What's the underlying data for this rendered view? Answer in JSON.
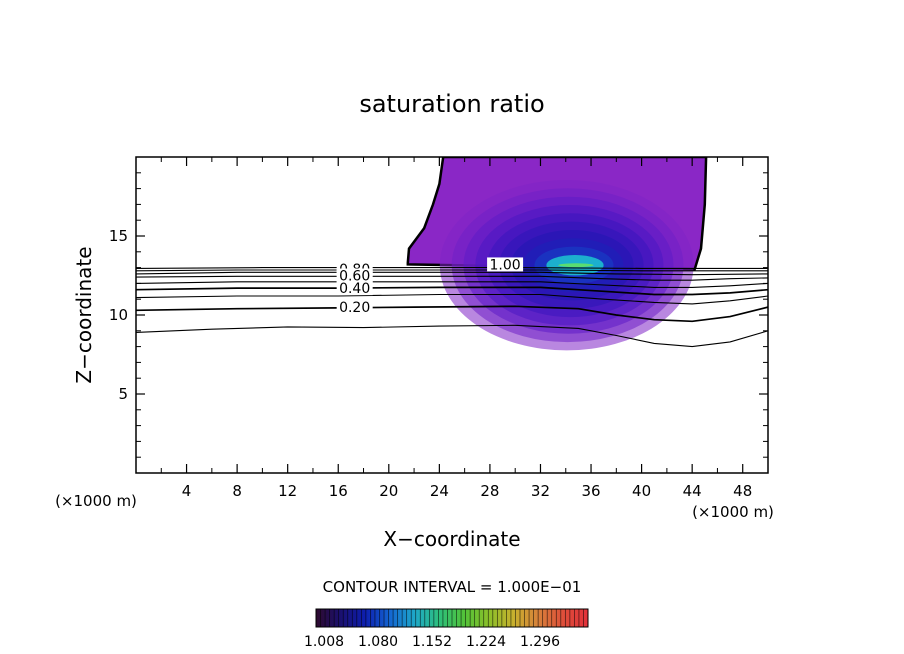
{
  "chart_data": {
    "type": "contour",
    "title": "saturation ratio",
    "xlabel": "X−coordinate",
    "ylabel": "Z−coordinate",
    "x_unit_left": "(×1000 m)",
    "x_unit_right": "(×1000 m)",
    "xlim": [
      0,
      50
    ],
    "ylim": [
      0,
      20
    ],
    "x_ticks": [
      4,
      8,
      12,
      16,
      20,
      24,
      28,
      32,
      36,
      40,
      44,
      48
    ],
    "y_ticks": [
      5,
      10,
      15
    ],
    "x_tick_labels": [
      "4",
      "8",
      "12",
      "16",
      "20",
      "24",
      "28",
      "32",
      "36",
      "40",
      "44",
      "48"
    ],
    "y_tick_labels": [
      "5",
      "10",
      "15"
    ],
    "contour_interval_text": "CONTOUR INTERVAL = 1.000E−01",
    "contour_line_labels": [
      {
        "text": "0.80",
        "x": 17.3,
        "y": 12.9
      },
      {
        "text": "0.60",
        "x": 17.3,
        "y": 12.5
      },
      {
        "text": "0.40",
        "x": 17.3,
        "y": 11.7
      },
      {
        "text": "0.20",
        "x": 17.3,
        "y": 10.5
      },
      {
        "text": "1.00",
        "x": 29.2,
        "y": 13.2
      }
    ],
    "contour_lines": [
      {
        "level": 0.1,
        "points": [
          [
            0,
            8.9
          ],
          [
            6,
            9.1
          ],
          [
            12,
            9.25
          ],
          [
            18,
            9.2
          ],
          [
            24,
            9.3
          ],
          [
            30,
            9.35
          ],
          [
            35,
            9.15
          ],
          [
            38,
            8.7
          ],
          [
            41,
            8.2
          ],
          [
            44,
            8.0
          ],
          [
            47,
            8.3
          ],
          [
            50,
            9.0
          ]
        ]
      },
      {
        "level": 0.2,
        "points": [
          [
            0,
            10.3
          ],
          [
            8,
            10.4
          ],
          [
            16,
            10.45
          ],
          [
            22,
            10.5
          ],
          [
            30,
            10.55
          ],
          [
            35,
            10.4
          ],
          [
            38,
            10.0
          ],
          [
            41,
            9.7
          ],
          [
            44,
            9.6
          ],
          [
            47,
            9.9
          ],
          [
            50,
            10.5
          ]
        ]
      },
      {
        "level": 0.3,
        "points": [
          [
            0,
            11.1
          ],
          [
            8,
            11.2
          ],
          [
            16,
            11.2
          ],
          [
            24,
            11.3
          ],
          [
            32,
            11.3
          ],
          [
            37,
            11.0
          ],
          [
            41,
            10.8
          ],
          [
            44,
            10.7
          ],
          [
            47,
            10.9
          ],
          [
            50,
            11.2
          ]
        ]
      },
      {
        "level": 0.4,
        "points": [
          [
            0,
            11.6
          ],
          [
            8,
            11.7
          ],
          [
            16,
            11.7
          ],
          [
            24,
            11.75
          ],
          [
            32,
            11.75
          ],
          [
            37,
            11.5
          ],
          [
            41,
            11.3
          ],
          [
            44,
            11.3
          ],
          [
            47,
            11.4
          ],
          [
            50,
            11.6
          ]
        ]
      },
      {
        "level": 0.5,
        "points": [
          [
            0,
            12.0
          ],
          [
            8,
            12.1
          ],
          [
            16,
            12.1
          ],
          [
            24,
            12.1
          ],
          [
            32,
            12.1
          ],
          [
            37,
            11.9
          ],
          [
            41,
            11.75
          ],
          [
            44,
            11.75
          ],
          [
            47,
            11.85
          ],
          [
            50,
            12.0
          ]
        ]
      },
      {
        "level": 0.6,
        "points": [
          [
            0,
            12.4
          ],
          [
            8,
            12.45
          ],
          [
            16,
            12.45
          ],
          [
            24,
            12.45
          ],
          [
            32,
            12.45
          ],
          [
            37,
            12.3
          ],
          [
            41,
            12.2
          ],
          [
            44,
            12.2
          ],
          [
            47,
            12.3
          ],
          [
            50,
            12.35
          ]
        ]
      },
      {
        "level": 0.7,
        "points": [
          [
            0,
            12.6
          ],
          [
            8,
            12.7
          ],
          [
            16,
            12.7
          ],
          [
            24,
            12.7
          ],
          [
            32,
            12.7
          ],
          [
            38,
            12.6
          ],
          [
            44,
            12.55
          ],
          [
            50,
            12.6
          ]
        ]
      },
      {
        "level": 0.8,
        "points": [
          [
            0,
            12.8
          ],
          [
            8,
            12.85
          ],
          [
            16,
            12.85
          ],
          [
            24,
            12.85
          ],
          [
            32,
            12.85
          ],
          [
            40,
            12.8
          ],
          [
            50,
            12.8
          ]
        ]
      },
      {
        "level": 0.9,
        "points": [
          [
            0,
            12.95
          ],
          [
            10,
            13.0
          ],
          [
            20,
            13.0
          ],
          [
            30,
            13.0
          ],
          [
            40,
            12.95
          ],
          [
            50,
            12.95
          ]
        ]
      }
    ],
    "supersaturated_region": {
      "outline": [
        [
          21.5,
          13.3
        ],
        [
          21.6,
          14.2
        ],
        [
          22.8,
          15.5
        ],
        [
          23.5,
          17.0
        ],
        [
          24.0,
          18.3
        ],
        [
          24.3,
          20.0
        ],
        [
          45.1,
          20.0
        ],
        [
          45.0,
          17.0
        ],
        [
          44.7,
          14.2
        ],
        [
          44.2,
          12.9
        ],
        [
          21.5,
          13.2
        ]
      ],
      "color_bands": [
        "#8a27c6",
        "#7f24c7",
        "#6f20c7",
        "#5c1cc7",
        "#4a18c3",
        "#3a16bd",
        "#2c16b7",
        "#2118b2",
        "#1a24b8",
        "#1543c8",
        "#1cb7cf",
        "#5ddf6c"
      ]
    },
    "colorbar": {
      "tick_labels": [
        "1.008",
        "1.080",
        "1.152",
        "1.224",
        "1.296"
      ],
      "colors": [
        "#2e0a2e",
        "#1a1070",
        "#0d1fb0",
        "#1467d2",
        "#1ea8c8",
        "#2ec07a",
        "#52c238",
        "#8cc02a",
        "#c8b02e",
        "#d8803a",
        "#de4e3a",
        "#e2303a"
      ]
    }
  }
}
